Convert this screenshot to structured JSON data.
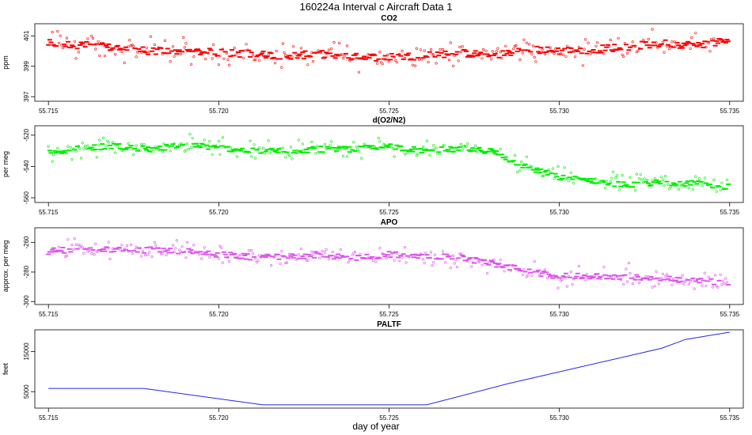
{
  "figure": {
    "title": "160224a   Interval c Aircraft Data 1",
    "xlabel": "day of year"
  },
  "chart_data": [
    {
      "type": "scatter",
      "title": "CO2",
      "ylabel": "ppm",
      "color": "#ff0000",
      "xlim": [
        55.7146,
        55.7354
      ],
      "ylim": [
        396.7,
        401.8
      ],
      "xticks": [
        55.715,
        55.72,
        55.725,
        55.73,
        55.735
      ],
      "xtick_labels": [
        "55.715",
        "55.720",
        "55.725",
        "55.730",
        "55.735"
      ],
      "yticks": [
        397,
        399,
        401
      ],
      "ytick_labels": [
        "397",
        "399",
        "401"
      ],
      "grid": false,
      "series": [
        {
          "x": [
            55.715,
            55.716,
            55.717,
            55.718,
            55.719,
            55.72,
            55.721,
            55.722,
            55.723,
            55.724,
            55.725,
            55.726,
            55.727,
            55.728,
            55.729,
            55.73,
            55.731,
            55.732,
            55.733,
            55.734,
            55.735
          ],
          "y": [
            400.5,
            400.4,
            400.2,
            400.0,
            400.0,
            399.9,
            399.8,
            399.7,
            399.8,
            399.6,
            399.6,
            399.7,
            399.9,
            399.7,
            400.1,
            400.0,
            400.1,
            400.3,
            400.5,
            400.4,
            400.7
          ]
        }
      ]
    },
    {
      "type": "scatter",
      "title": "d(O2/N2)",
      "ylabel": "per meg",
      "color": "#00ee00",
      "xlim": [
        55.7146,
        55.7354
      ],
      "ylim": [
        -563,
        -514
      ],
      "xticks": [
        55.715,
        55.72,
        55.725,
        55.73,
        55.735
      ],
      "xtick_labels": [
        "55.715",
        "55.720",
        "55.725",
        "55.730",
        "55.735"
      ],
      "yticks": [
        -560,
        -540,
        -520
      ],
      "ytick_labels": [
        "-560",
        "-540",
        "-520"
      ],
      "grid": false,
      "series": [
        {
          "x": [
            55.715,
            55.716,
            55.717,
            55.718,
            55.719,
            55.72,
            55.721,
            55.722,
            55.723,
            55.724,
            55.725,
            55.726,
            55.727,
            55.728,
            55.729,
            55.73,
            55.731,
            55.732,
            55.733,
            55.734,
            55.735
          ],
          "y": [
            -531,
            -528,
            -527,
            -529,
            -526,
            -528,
            -530,
            -530,
            -529,
            -529,
            -527,
            -530,
            -529,
            -530,
            -540,
            -547,
            -549,
            -552,
            -550,
            -551,
            -553
          ]
        }
      ]
    },
    {
      "type": "scatter",
      "title": "APO",
      "ylabel": "approx. per meg",
      "color": "#dd55ee",
      "xlim": [
        55.7146,
        55.7354
      ],
      "ylim": [
        -302,
        -250
      ],
      "xticks": [
        55.715,
        55.72,
        55.725,
        55.73,
        55.735
      ],
      "xtick_labels": [
        "55.715",
        "55.720",
        "55.725",
        "55.730",
        "55.735"
      ],
      "yticks": [
        -300,
        -280,
        -260
      ],
      "ytick_labels": [
        "-300",
        "-280",
        "-260"
      ],
      "grid": false,
      "series": [
        {
          "x": [
            55.715,
            55.716,
            55.717,
            55.718,
            55.719,
            55.72,
            55.721,
            55.722,
            55.723,
            55.724,
            55.725,
            55.726,
            55.727,
            55.728,
            55.729,
            55.73,
            55.731,
            55.732,
            55.733,
            55.734,
            55.735
          ],
          "y": [
            -266,
            -264,
            -265,
            -265,
            -266,
            -268,
            -270,
            -270,
            -268,
            -271,
            -268,
            -269,
            -270,
            -274,
            -279,
            -283,
            -283,
            -283,
            -284,
            -286,
            -287
          ]
        }
      ]
    },
    {
      "type": "line",
      "title": "PALTF",
      "ylabel": "feet",
      "color": "#2222ee",
      "xlim": [
        55.7146,
        55.7354
      ],
      "ylim": [
        900,
        20400
      ],
      "xticks": [
        55.715,
        55.72,
        55.725,
        55.73,
        55.735
      ],
      "xtick_labels": [
        "55.715",
        "55.720",
        "55.725",
        "55.730",
        "55.735"
      ],
      "yticks": [
        5000,
        15000
      ],
      "ytick_labels": [
        "5000",
        "15000"
      ],
      "grid": false,
      "series": [
        {
          "x": [
            55.715,
            55.7178,
            55.7213,
            55.7261,
            55.7285,
            55.733,
            55.7337,
            55.735
          ],
          "y": [
            5800,
            5800,
            1700,
            1700,
            7000,
            15800,
            18000,
            19800
          ]
        }
      ]
    }
  ]
}
